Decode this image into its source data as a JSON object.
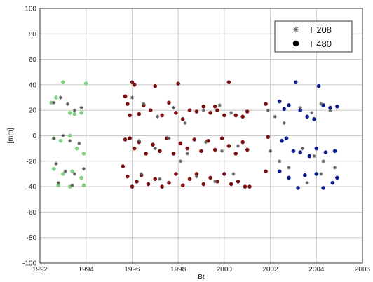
{
  "chart_data": {
    "type": "scatter",
    "title": "",
    "xlabel": "Bt",
    "ylabel": "[mm]",
    "xlim": [
      1992,
      2006
    ],
    "ylim": [
      -100,
      100
    ],
    "xticks": [
      1992,
      1994,
      1996,
      1998,
      2000,
      2002,
      2004,
      2006
    ],
    "yticks": [
      -100,
      -80,
      -60,
      -40,
      -20,
      0,
      20,
      40,
      60,
      80,
      100
    ],
    "grid": true,
    "legend_position": "top-right",
    "colors": {
      "segment_1992_1994": "#7fcf7f",
      "segment_1995_2001": "#7a1010",
      "segment_2003_2005": "#0a1a8a",
      "t208_marker": "#555555",
      "t480_legend_marker": "#000000"
    },
    "series": [
      {
        "name": "T 208",
        "marker": "star",
        "points": [
          [
            1992.6,
            26
          ],
          [
            1992.9,
            30
          ],
          [
            1993.2,
            25
          ],
          [
            1993.5,
            20
          ],
          [
            1993.8,
            22
          ],
          [
            1992.6,
            -2
          ],
          [
            1993.0,
            0
          ],
          [
            1993.3,
            -4
          ],
          [
            1993.7,
            -6
          ],
          [
            1992.7,
            -22
          ],
          [
            1993.1,
            -28
          ],
          [
            1993.5,
            -30
          ],
          [
            1993.9,
            -26
          ],
          [
            1992.8,
            -37
          ],
          [
            1993.4,
            -39
          ],
          [
            1996.0,
            30
          ],
          [
            1996.5,
            25
          ],
          [
            1997.1,
            15
          ],
          [
            1997.8,
            22
          ],
          [
            1998.3,
            10
          ],
          [
            1999.1,
            20
          ],
          [
            1999.8,
            24
          ],
          [
            2000.3,
            18
          ],
          [
            1996.3,
            -4
          ],
          [
            1997.0,
            -10
          ],
          [
            1997.6,
            -2
          ],
          [
            1998.4,
            -14
          ],
          [
            1999.2,
            -5
          ],
          [
            1999.9,
            -12
          ],
          [
            2000.6,
            -8
          ],
          [
            1996.4,
            -30
          ],
          [
            1997.2,
            -34
          ],
          [
            1998.1,
            -20
          ],
          [
            1998.8,
            -32
          ],
          [
            1999.6,
            -36
          ],
          [
            2000.4,
            -30
          ],
          [
            2001.9,
            20
          ],
          [
            2002.2,
            15
          ],
          [
            2002.6,
            10
          ],
          [
            2002.0,
            -12
          ],
          [
            2002.4,
            -20
          ],
          [
            2002.8,
            -25
          ],
          [
            2003.3,
            22
          ],
          [
            2003.8,
            18
          ],
          [
            2004.2,
            25
          ],
          [
            2004.6,
            20
          ],
          [
            2003.4,
            -10
          ],
          [
            2003.9,
            -16
          ],
          [
            2004.3,
            -20
          ],
          [
            2003.6,
            -37
          ],
          [
            2004.2,
            -30
          ],
          [
            2004.8,
            -25
          ]
        ]
      },
      {
        "name": "T 480",
        "marker": "circle",
        "points": [
          [
            1992.5,
            26
          ],
          [
            1992.7,
            30
          ],
          [
            1993.0,
            42
          ],
          [
            1993.3,
            18
          ],
          [
            1993.5,
            17
          ],
          [
            1993.8,
            18
          ],
          [
            1994.0,
            41
          ],
          [
            1992.6,
            -2
          ],
          [
            1992.9,
            -4
          ],
          [
            1993.3,
            0
          ],
          [
            1993.6,
            -10
          ],
          [
            1993.9,
            -14
          ],
          [
            1992.6,
            -26
          ],
          [
            1993.0,
            -30
          ],
          [
            1993.4,
            -28
          ],
          [
            1993.8,
            -33
          ],
          [
            1992.8,
            -39
          ],
          [
            1993.3,
            -40
          ],
          [
            1993.9,
            -39
          ],
          [
            1995.7,
            31
          ],
          [
            1995.8,
            25
          ],
          [
            1995.9,
            16
          ],
          [
            1996.0,
            42
          ],
          [
            1996.1,
            40
          ],
          [
            1996.3,
            17
          ],
          [
            1996.5,
            24
          ],
          [
            1996.8,
            20
          ],
          [
            1997.0,
            39
          ],
          [
            1997.3,
            16
          ],
          [
            1997.6,
            26
          ],
          [
            1997.9,
            18
          ],
          [
            1998.2,
            13
          ],
          [
            1998.5,
            20
          ],
          [
            1998.8,
            19
          ],
          [
            1999.1,
            23
          ],
          [
            1999.4,
            18
          ],
          [
            1999.7,
            20
          ],
          [
            2000.0,
            16
          ],
          [
            2000.2,
            42
          ],
          [
            2000.5,
            16
          ],
          [
            2000.8,
            15
          ],
          [
            2001.0,
            19
          ],
          [
            1998.0,
            41
          ],
          [
            1999.6,
            23
          ],
          [
            1995.7,
            -3
          ],
          [
            1995.9,
            -2
          ],
          [
            1996.1,
            -10
          ],
          [
            1996.3,
            -5
          ],
          [
            1996.6,
            -14
          ],
          [
            1996.9,
            -7
          ],
          [
            1997.2,
            -12
          ],
          [
            1997.5,
            -2
          ],
          [
            1997.8,
            -14
          ],
          [
            1998.1,
            -6
          ],
          [
            1998.4,
            -10
          ],
          [
            1998.7,
            -3
          ],
          [
            1999.0,
            -12
          ],
          [
            1999.3,
            -4
          ],
          [
            1999.6,
            -11
          ],
          [
            1999.9,
            -2
          ],
          [
            2000.2,
            -8
          ],
          [
            2000.5,
            -14
          ],
          [
            2000.8,
            -5
          ],
          [
            2001.0,
            -11
          ],
          [
            1995.6,
            -24
          ],
          [
            1995.8,
            -32
          ],
          [
            1996.0,
            -40
          ],
          [
            1996.2,
            -36
          ],
          [
            1996.4,
            -31
          ],
          [
            1996.7,
            -38
          ],
          [
            1997.0,
            -34
          ],
          [
            1997.3,
            -40
          ],
          [
            1997.6,
            -37
          ],
          [
            1997.9,
            -30
          ],
          [
            1998.2,
            -39
          ],
          [
            1998.5,
            -34
          ],
          [
            1998.8,
            -30
          ],
          [
            1999.1,
            -38
          ],
          [
            1999.4,
            -33
          ],
          [
            1999.7,
            -36
          ],
          [
            2000.0,
            -30
          ],
          [
            2000.3,
            -38
          ],
          [
            2000.6,
            -36
          ],
          [
            2000.9,
            -40
          ],
          [
            2001.1,
            -40
          ],
          [
            2001.8,
            -28
          ],
          [
            2001.8,
            25
          ],
          [
            2001.9,
            -1
          ],
          [
            2002.4,
            27
          ],
          [
            2002.6,
            21
          ],
          [
            2002.8,
            24
          ],
          [
            2003.1,
            42
          ],
          [
            2003.3,
            20
          ],
          [
            2003.6,
            15
          ],
          [
            2003.9,
            13
          ],
          [
            2004.1,
            39
          ],
          [
            2004.3,
            24
          ],
          [
            2004.6,
            22
          ],
          [
            2004.9,
            23
          ],
          [
            2002.5,
            -4
          ],
          [
            2002.7,
            -2
          ],
          [
            2003.0,
            -12
          ],
          [
            2003.3,
            -13
          ],
          [
            2003.7,
            -16
          ],
          [
            2004.0,
            -10
          ],
          [
            2004.4,
            -13
          ],
          [
            2004.8,
            -12
          ],
          [
            2002.4,
            -28
          ],
          [
            2002.8,
            -33
          ],
          [
            2003.2,
            -41
          ],
          [
            2003.5,
            -31
          ],
          [
            2004.0,
            -30
          ],
          [
            2004.3,
            -41
          ],
          [
            2004.7,
            -37
          ],
          [
            2004.9,
            -33
          ]
        ]
      }
    ],
    "legend": [
      {
        "label": "T 208",
        "marker": "star"
      },
      {
        "label": "T 480",
        "marker": "circle"
      }
    ]
  }
}
